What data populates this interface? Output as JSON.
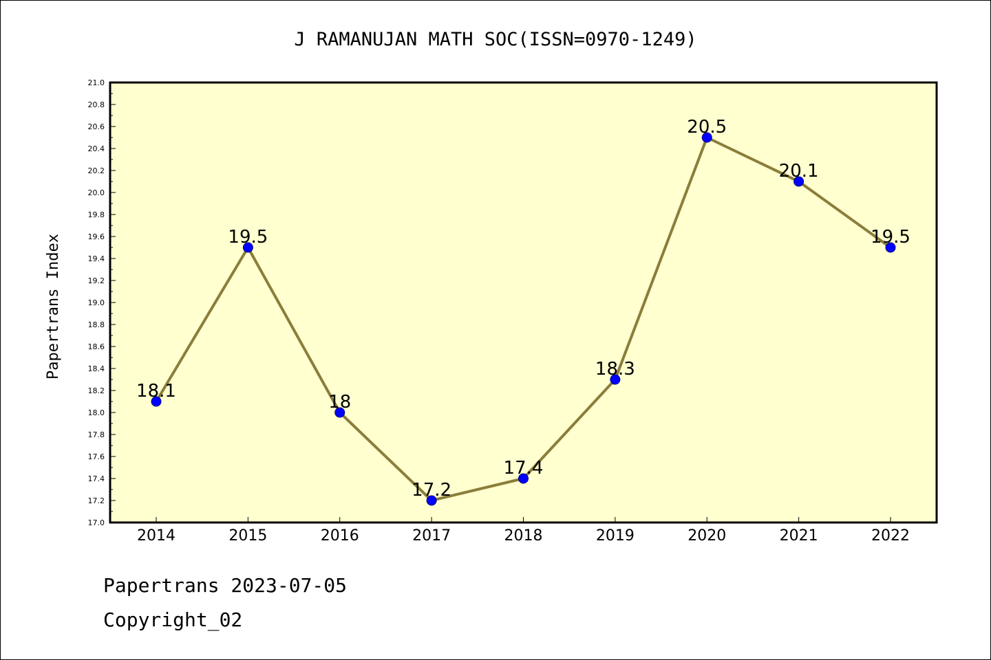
{
  "chart_data": {
    "type": "line",
    "title": "J RAMANUJAN MATH SOC(ISSN=0970-1249)",
    "xlabel": "",
    "ylabel": "Papertrans Index",
    "categories": [
      "2014",
      "2015",
      "2016",
      "2017",
      "2018",
      "2019",
      "2020",
      "2021",
      "2022"
    ],
    "series": [
      {
        "values": [
          18.1,
          19.5,
          18,
          17.2,
          17.4,
          18.3,
          20.5,
          20.1,
          19.5
        ],
        "data_labels": [
          "18.1",
          "19.5",
          "18",
          "17.2",
          "17.4",
          "18.3",
          "20.5",
          "20.1",
          "19.5"
        ]
      }
    ],
    "ylim": [
      17.0,
      21.0
    ],
    "yticks": [
      "17.0",
      "17.2",
      "17.4",
      "17.6",
      "17.8",
      "18.0",
      "18.2",
      "18.4",
      "18.6",
      "18.8",
      "19.0",
      "19.2",
      "19.4",
      "19.6",
      "19.8",
      "20.0",
      "20.2",
      "20.4",
      "20.6",
      "20.8",
      "21.0"
    ],
    "grid": false,
    "colors": {
      "plot_background": "#ffffd0",
      "line": "#8b7d3a",
      "marker": "#0000ff",
      "marker_edge": "#000080"
    }
  },
  "footer": {
    "line1": "Papertrans 2023-07-05",
    "line2": "Copyright_02"
  }
}
